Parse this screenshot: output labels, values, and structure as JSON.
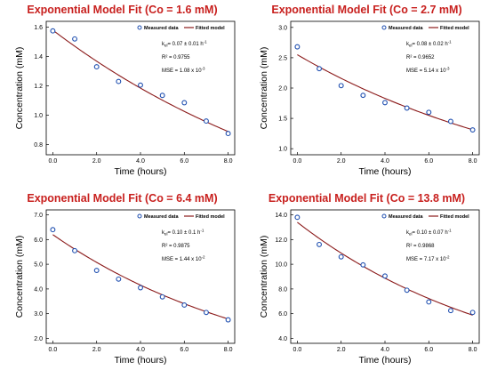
{
  "theme": {
    "title_color": "#c8201e",
    "fit_color": "#8b1a1a",
    "marker_color": "#1f4fb0"
  },
  "chart_data": [
    {
      "type": "scatter",
      "title": "Exponential Model Fit (Co = 1.6 mM)",
      "xlabel": "Time (hours)",
      "ylabel": "Concentration (mM)",
      "xlim": [
        -0.3,
        8.3
      ],
      "ylim": [
        0.73,
        1.64
      ],
      "xticks": [
        "0.0",
        "2.0",
        "4.0",
        "6.0",
        "8.0"
      ],
      "yticks": [
        "0.8",
        "1.0",
        "1.2",
        "1.4",
        "1.6"
      ],
      "legend_position": "top-right",
      "legend": {
        "measured": "Measured data",
        "fitted": "Fitted model"
      },
      "stats": {
        "k_prefix": "k",
        "k_sub": "el",
        "k_text": "= 0.07 ± 0.01 h",
        "k_sup": "-1",
        "r2": "R² = 0.9755",
        "mse_text": "MSE = 1.08 x 10",
        "mse_sup": "-3"
      },
      "series": [
        {
          "name": "Measured data",
          "x": [
            0,
            1,
            2,
            3,
            4,
            5,
            6,
            7,
            8
          ],
          "y": [
            1.575,
            1.52,
            1.33,
            1.23,
            1.205,
            1.135,
            1.085,
            0.96,
            0.875
          ]
        },
        {
          "name": "Fitted model",
          "curve": {
            "model": "exponential",
            "c0": 1.58,
            "k": 0.072
          }
        }
      ]
    },
    {
      "type": "scatter",
      "title": "Exponential Model Fit (Co = 2.7 mM)",
      "xlabel": "Time (hours)",
      "ylabel": "Concentration (mM)",
      "xlim": [
        -0.3,
        8.3
      ],
      "ylim": [
        0.9,
        3.1
      ],
      "xticks": [
        "0.0",
        "2.0",
        "4.0",
        "6.0",
        "8.0"
      ],
      "yticks": [
        "1.0",
        "1.5",
        "2.0",
        "2.5",
        "3.0"
      ],
      "legend_position": "top-right",
      "legend": {
        "measured": "Measured data",
        "fitted": "Fitted model"
      },
      "stats": {
        "k_prefix": "k",
        "k_sub": "el",
        "k_text": "= 0.08 ± 0.02 h",
        "k_sup": "-1",
        "r2": "R² = 0.9652",
        "mse_text": "MSE = 5.14 x 10",
        "mse_sup": "-3"
      },
      "series": [
        {
          "name": "Measured data",
          "x": [
            0,
            1,
            2,
            3,
            4,
            5,
            6,
            7,
            8
          ],
          "y": [
            2.68,
            2.32,
            2.04,
            1.88,
            1.76,
            1.67,
            1.6,
            1.45,
            1.31
          ]
        },
        {
          "name": "Fitted model",
          "curve": {
            "model": "exponential",
            "c0": 2.55,
            "k": 0.083
          }
        }
      ]
    },
    {
      "type": "scatter",
      "title": "Exponential Model Fit (Co = 6.4 mM)",
      "xlabel": "Time (hours)",
      "ylabel": "Concentration (mM)",
      "xlim": [
        -0.3,
        8.3
      ],
      "ylim": [
        1.8,
        7.2
      ],
      "xticks": [
        "0.0",
        "2.0",
        "4.0",
        "6.0",
        "8.0"
      ],
      "yticks": [
        "2.0",
        "3.0",
        "4.0",
        "5.0",
        "6.0",
        "7.0"
      ],
      "legend_position": "top-right",
      "legend": {
        "measured": "Measured data",
        "fitted": "Fitted model"
      },
      "stats": {
        "k_prefix": "k",
        "k_sub": "el",
        "k_text": "= 0.10 ± 0.1 h",
        "k_sup": "-1",
        "r2": "R² = 0.9875",
        "mse_text": "MSE = 1.44 x 10",
        "mse_sup": "-2"
      },
      "series": [
        {
          "name": "Measured data",
          "x": [
            0,
            1,
            2,
            3,
            4,
            5,
            6,
            7,
            8
          ],
          "y": [
            6.4,
            5.55,
            4.75,
            4.4,
            4.05,
            3.68,
            3.35,
            3.05,
            2.75
          ]
        },
        {
          "name": "Fitted model",
          "curve": {
            "model": "exponential",
            "c0": 6.2,
            "k": 0.1
          }
        }
      ]
    },
    {
      "type": "scatter",
      "title": "Exponential Model Fit (Co = 13.8 mM)",
      "xlabel": "Time (hours)",
      "ylabel": "Concentration (mM)",
      "xlim": [
        -0.3,
        8.3
      ],
      "ylim": [
        3.6,
        14.4
      ],
      "xticks": [
        "0.0",
        "2.0",
        "4.0",
        "6.0",
        "8.0"
      ],
      "yticks": [
        "4.0",
        "6.0",
        "8.0",
        "10.0",
        "12.0",
        "14.0"
      ],
      "legend_position": "top-right",
      "legend": {
        "measured": "Measured data",
        "fitted": "Fitted model"
      },
      "stats": {
        "k_prefix": "k",
        "k_sub": "el",
        "k_text": "= 0.10 ± 0.07 h",
        "k_sup": "-1",
        "r2": "R² = 0.9868",
        "mse_text": "MSE = 7.17 x 10",
        "mse_sup": "-2"
      },
      "series": [
        {
          "name": "Measured data",
          "x": [
            0,
            1,
            2,
            3,
            4,
            5,
            6,
            7,
            8
          ],
          "y": [
            13.8,
            11.6,
            10.6,
            9.95,
            9.05,
            7.9,
            6.95,
            6.25,
            6.1
          ]
        },
        {
          "name": "Fitted model",
          "curve": {
            "model": "exponential",
            "c0": 13.4,
            "k": 0.103
          }
        }
      ]
    }
  ]
}
